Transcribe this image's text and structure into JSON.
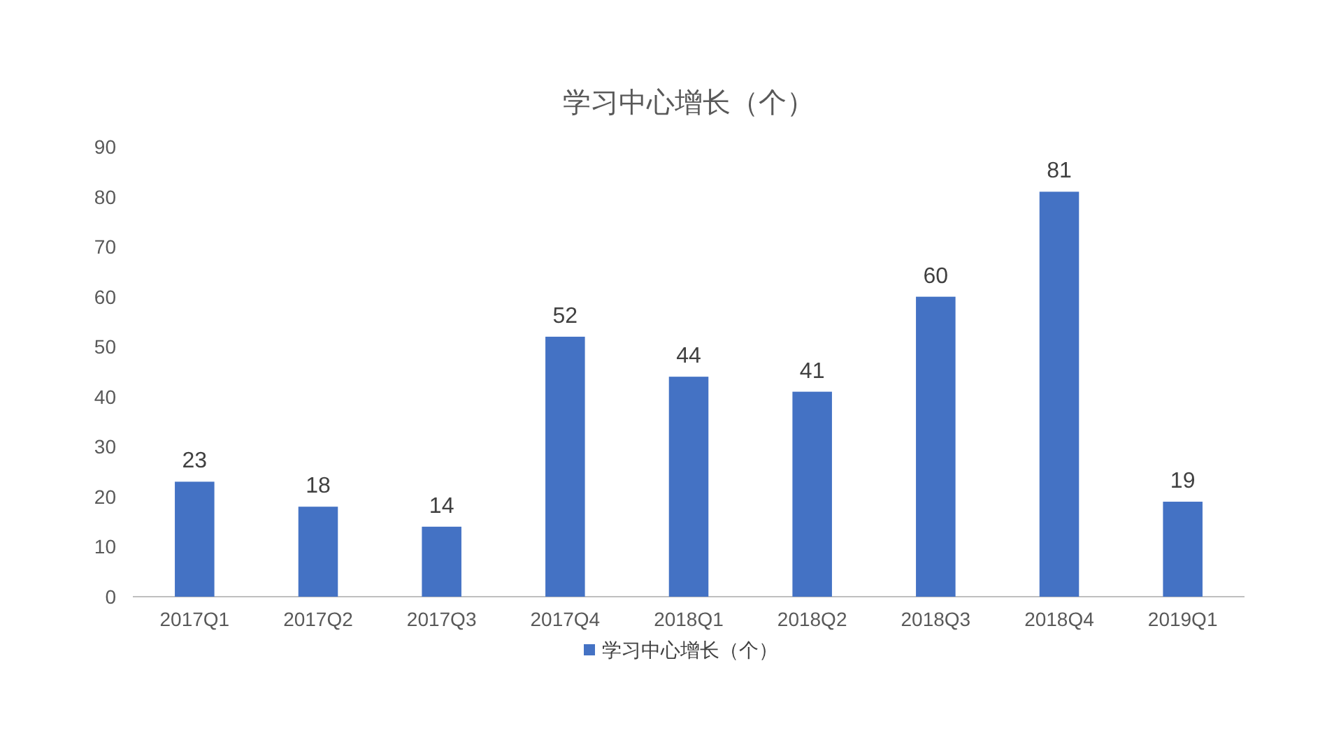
{
  "chart_data": {
    "type": "bar",
    "title": "学习中心增长（个）",
    "categories": [
      "2017Q1",
      "2017Q2",
      "2017Q3",
      "2017Q4",
      "2018Q1",
      "2018Q2",
      "2018Q3",
      "2018Q4",
      "2019Q1"
    ],
    "series": [
      {
        "name": "学习中心增长（个）",
        "color": "#4472c4",
        "values": [
          23,
          18,
          14,
          52,
          44,
          41,
          60,
          81,
          19
        ]
      }
    ],
    "ylim": [
      0,
      90
    ],
    "yticks": [
      0,
      10,
      20,
      30,
      40,
      50,
      60,
      70,
      80,
      90
    ],
    "data_labels": true,
    "legend": "bottom"
  }
}
